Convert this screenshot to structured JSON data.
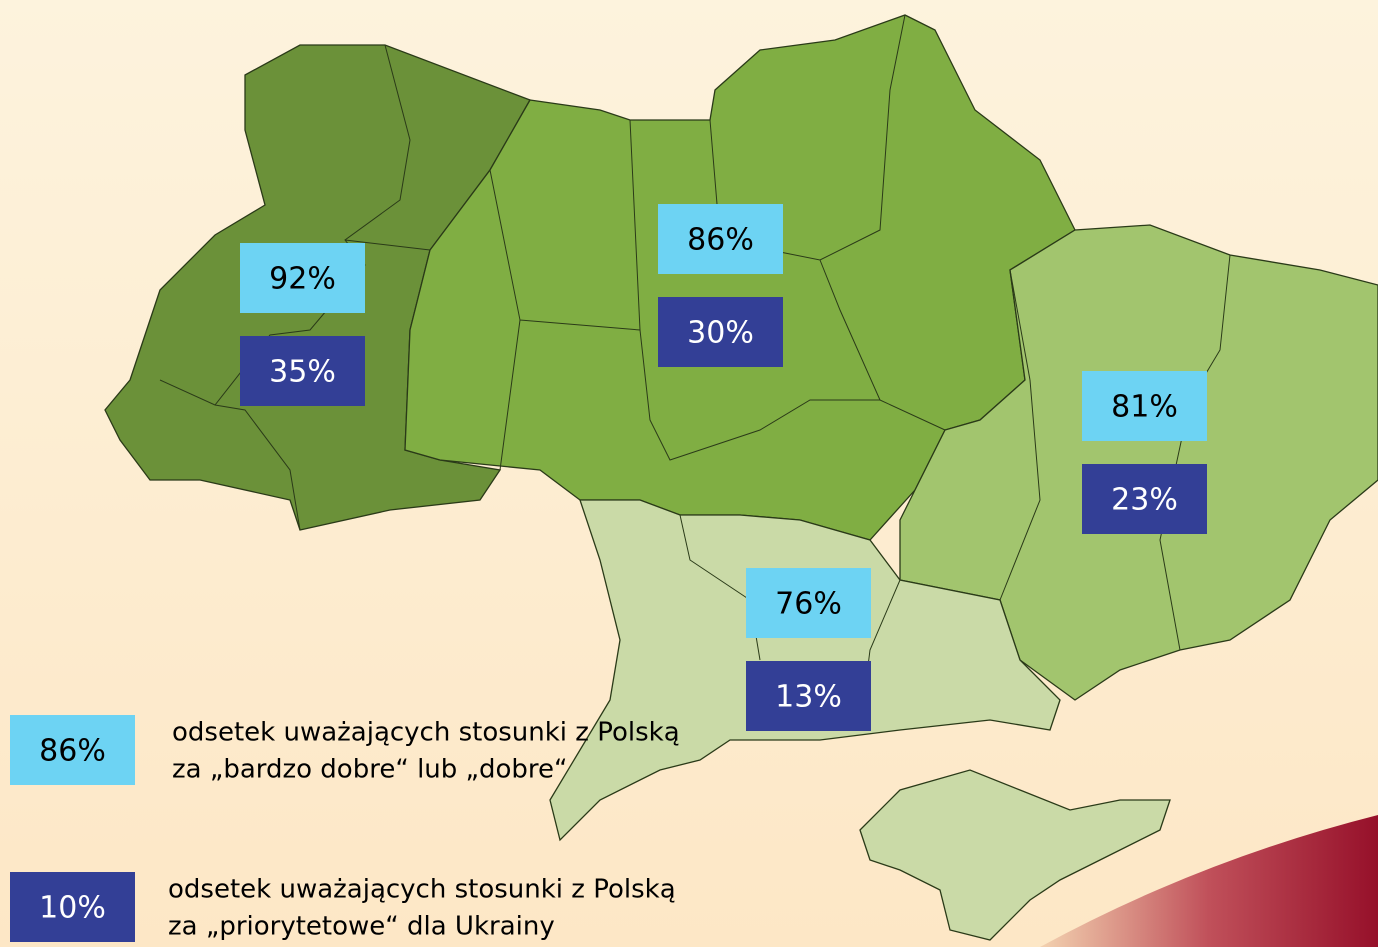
{
  "regions": [
    {
      "good": "92%",
      "priority": "35%"
    },
    {
      "good": "86%",
      "priority": "30%"
    },
    {
      "good": "81%",
      "priority": "23%"
    },
    {
      "good": "76%",
      "priority": "13%"
    }
  ],
  "legend": [
    {
      "sample": "86%",
      "lines": [
        "odsetek uważających stosunki z Polską",
        "za „bardzo dobre“ lub „dobre“"
      ]
    },
    {
      "sample": "10%",
      "lines": [
        "odsetek uważających stosunki z Polską",
        "za „priorytetowe“ dla Ukrainy"
      ]
    }
  ]
}
